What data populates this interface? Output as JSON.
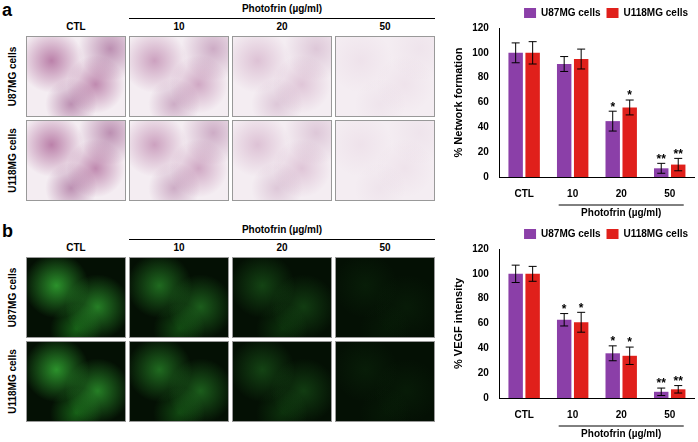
{
  "image_panels": [
    {
      "panel": "a",
      "header": "Photofrin (µg/ml)",
      "columns": [
        "CTL",
        "10",
        "20",
        "50"
      ],
      "rows": [
        "U87MG cells",
        "U118MG cells"
      ]
    },
    {
      "panel": "b",
      "header": "Photofrin (µg/ml)",
      "columns": [
        "CTL",
        "10",
        "20",
        "50"
      ],
      "rows": [
        "U87MG cells",
        "U118MG cells"
      ]
    }
  ],
  "chart_data": [
    {
      "type": "bar",
      "y_label": "% Network formation",
      "x_label": "Photofrin (µg/ml)",
      "categories": [
        "CTL",
        "10",
        "20",
        "50"
      ],
      "series": [
        {
          "name": "U87MG cells",
          "color": "#8b3fa8",
          "values": [
            100,
            91,
            45,
            7
          ],
          "errors": [
            8,
            6,
            8,
            4
          ],
          "annotations": [
            null,
            null,
            "*",
            "**"
          ]
        },
        {
          "name": "U118MG cells",
          "color": "#e0201b",
          "values": [
            100,
            95,
            56,
            10
          ],
          "errors": [
            9,
            8,
            6,
            5
          ],
          "annotations": [
            null,
            null,
            "*",
            "**"
          ]
        }
      ],
      "ylim": [
        0,
        120
      ],
      "yticks": [
        0,
        20,
        40,
        60,
        80,
        100,
        120
      ],
      "grid": false,
      "legend": "top right"
    },
    {
      "type": "bar",
      "y_label": "% VEGF intensity",
      "x_label": "Photofrin (µg/ml)",
      "categories": [
        "CTL",
        "10",
        "20",
        "50"
      ],
      "series": [
        {
          "name": "U87MG cells",
          "color": "#8b3fa8",
          "values": [
            100,
            63,
            36,
            5
          ],
          "errors": [
            7,
            5,
            6,
            3
          ],
          "annotations": [
            null,
            "*",
            "*",
            "**"
          ]
        },
        {
          "name": "U118MG cells",
          "color": "#e0201b",
          "values": [
            100,
            61,
            34,
            7
          ],
          "errors": [
            6,
            8,
            7,
            3
          ],
          "annotations": [
            null,
            "*",
            "*",
            "**"
          ]
        }
      ],
      "ylim": [
        0,
        120
      ],
      "yticks": [
        0,
        20,
        40,
        60,
        80,
        100,
        120
      ],
      "grid": false,
      "legend": "top right"
    }
  ]
}
